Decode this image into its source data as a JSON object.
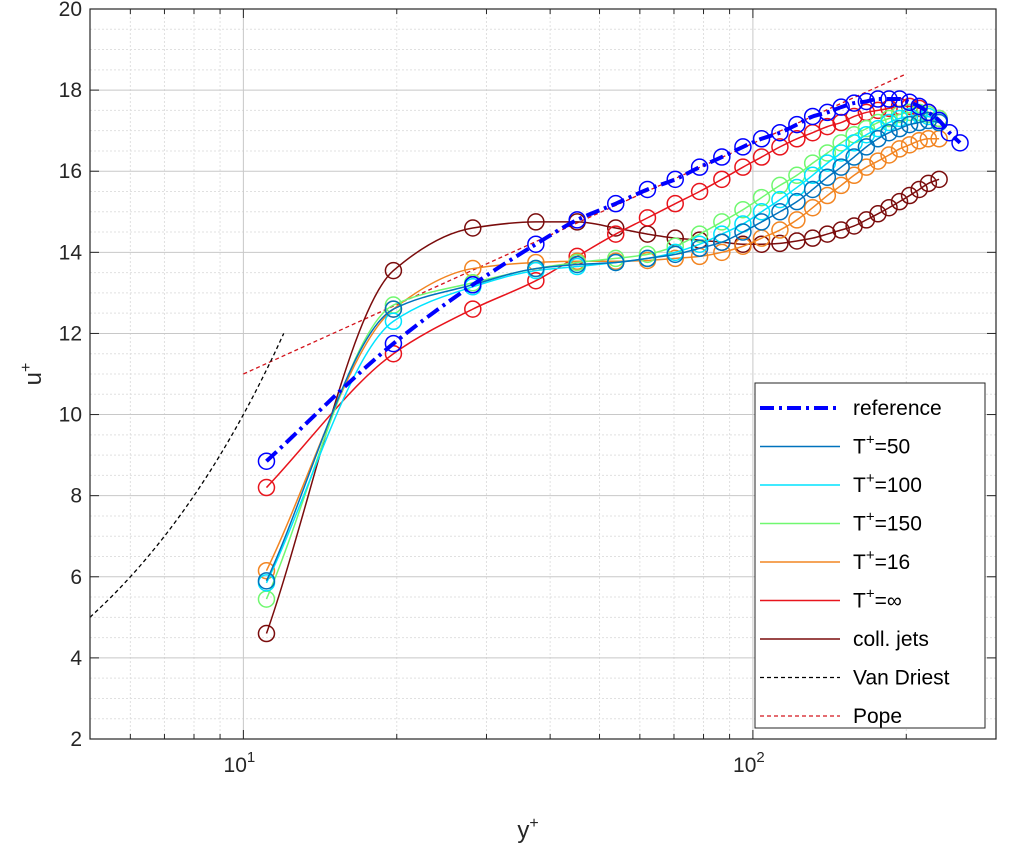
{
  "chart_data": {
    "type": "line",
    "xscale": "log",
    "xlim": [
      5,
      300
    ],
    "ylim": [
      2,
      20
    ],
    "xlabel_base": "y",
    "xlabel_sup": "+",
    "ylabel_base": "u",
    "ylabel_sup": "+",
    "grid": true,
    "minor_grid": true,
    "legend_position": "bottom-right",
    "yticks": [
      "2",
      "4",
      "6",
      "8",
      "10",
      "12",
      "14",
      "16",
      "18",
      "20"
    ],
    "xticks": [
      {
        "value": 10,
        "base": "10",
        "exp": "1"
      },
      {
        "value": 100,
        "base": "10",
        "exp": "2"
      }
    ],
    "series": [
      {
        "name": "reference",
        "name_base": "reference",
        "name_sup": "",
        "name_tail": "",
        "color": "#0000ff",
        "style": "dashdot",
        "width": 4,
        "markers": true,
        "x": [
          11.1,
          19.7,
          28.2,
          37.5,
          45.2,
          53.8,
          62.1,
          70.4,
          78.6,
          86.9,
          95.6,
          104,
          113,
          122,
          131,
          140,
          149,
          158,
          167,
          176,
          185,
          194,
          203,
          212,
          221,
          232,
          243,
          255
        ],
        "y": [
          8.85,
          11.75,
          13.2,
          14.2,
          14.8,
          15.2,
          15.55,
          15.8,
          16.1,
          16.35,
          16.6,
          16.8,
          16.95,
          17.15,
          17.35,
          17.45,
          17.58,
          17.68,
          17.72,
          17.78,
          17.78,
          17.78,
          17.7,
          17.6,
          17.45,
          17.25,
          16.95,
          16.7
        ]
      },
      {
        "name": "T+=50",
        "name_base": "T",
        "name_sup": "+",
        "name_tail": "=50",
        "color": "#0072bd",
        "style": "solid",
        "width": 1.5,
        "markers": true,
        "x": [
          11.1,
          19.7,
          28.2,
          37.5,
          45.2,
          53.8,
          62.1,
          70.4,
          78.6,
          86.9,
          95.6,
          104,
          113,
          122,
          131,
          140,
          149,
          158,
          167,
          176,
          185,
          194,
          203,
          212,
          221,
          232
        ],
        "y": [
          5.9,
          12.6,
          13.2,
          13.6,
          13.7,
          13.75,
          13.85,
          13.95,
          14.1,
          14.25,
          14.5,
          14.75,
          15.0,
          15.25,
          15.55,
          15.85,
          16.1,
          16.35,
          16.6,
          16.8,
          16.95,
          17.05,
          17.15,
          17.2,
          17.25,
          17.2
        ]
      },
      {
        "name": "T+=100",
        "name_base": "T",
        "name_sup": "+",
        "name_tail": "=100",
        "color": "#00e4ff",
        "style": "solid",
        "width": 1.5,
        "markers": true,
        "x": [
          11.1,
          19.7,
          28.2,
          37.5,
          45.2,
          53.8,
          62.1,
          70.4,
          78.6,
          86.9,
          95.6,
          104,
          113,
          122,
          131,
          140,
          149,
          158,
          167,
          176,
          185,
          194,
          203,
          212,
          221,
          232
        ],
        "y": [
          5.85,
          12.3,
          13.15,
          13.55,
          13.65,
          13.75,
          13.85,
          14.0,
          14.2,
          14.45,
          14.7,
          15.0,
          15.3,
          15.6,
          15.9,
          16.2,
          16.45,
          16.7,
          16.9,
          17.05,
          17.2,
          17.3,
          17.35,
          17.4,
          17.35,
          17.25
        ]
      },
      {
        "name": "T+=150",
        "name_base": "T",
        "name_sup": "+",
        "name_tail": "=150",
        "color": "#70f870",
        "style": "solid",
        "width": 1.5,
        "markers": true,
        "x": [
          11.1,
          19.7,
          28.2,
          37.5,
          45.2,
          53.8,
          62.1,
          70.4,
          78.6,
          86.9,
          95.6,
          104,
          113,
          122,
          131,
          140,
          149,
          158,
          167,
          176,
          185,
          194,
          203,
          212,
          221,
          232
        ],
        "y": [
          5.45,
          12.7,
          13.25,
          13.6,
          13.75,
          13.85,
          13.95,
          14.15,
          14.45,
          14.75,
          15.05,
          15.35,
          15.65,
          15.9,
          16.2,
          16.45,
          16.7,
          16.9,
          17.05,
          17.2,
          17.3,
          17.4,
          17.45,
          17.45,
          17.4,
          17.3
        ]
      },
      {
        "name": "T+=16",
        "name_base": "T",
        "name_sup": "+",
        "name_tail": "=16",
        "color": "#f28522",
        "style": "solid",
        "width": 1.5,
        "markers": true,
        "x": [
          11.1,
          19.7,
          28.2,
          37.5,
          45.2,
          53.8,
          62.1,
          70.4,
          78.6,
          86.9,
          95.6,
          104,
          113,
          122,
          131,
          140,
          149,
          158,
          167,
          176,
          185,
          194,
          203,
          212,
          221,
          232
        ],
        "y": [
          6.15,
          12.6,
          13.6,
          13.75,
          13.78,
          13.78,
          13.8,
          13.85,
          13.9,
          14.0,
          14.15,
          14.35,
          14.55,
          14.8,
          15.1,
          15.4,
          15.65,
          15.9,
          16.1,
          16.25,
          16.4,
          16.55,
          16.65,
          16.75,
          16.8,
          16.8
        ]
      },
      {
        "name": "T+=∞",
        "name_base": "T",
        "name_sup": "+",
        "name_tail": "=∞",
        "color": "#e8141c",
        "style": "solid",
        "width": 1.5,
        "markers": true,
        "x": [
          11.1,
          19.7,
          28.2,
          37.5,
          45.2,
          53.8,
          62.1,
          70.4,
          78.6,
          86.9,
          95.6,
          104,
          113,
          122,
          131,
          140,
          149,
          158,
          167,
          176,
          185,
          194,
          203,
          212,
          221,
          232
        ],
        "y": [
          8.2,
          11.5,
          12.6,
          13.3,
          13.9,
          14.45,
          14.85,
          15.2,
          15.5,
          15.8,
          16.1,
          16.35,
          16.6,
          16.8,
          16.95,
          17.1,
          17.2,
          17.35,
          17.45,
          17.5,
          17.55,
          17.6,
          17.6,
          17.55,
          17.45,
          17.3
        ]
      },
      {
        "name": "coll. jets",
        "name_base": "coll. jets",
        "name_sup": "",
        "name_tail": "",
        "color": "#7a0c0c",
        "style": "solid",
        "width": 1.5,
        "markers": true,
        "x": [
          11.1,
          19.7,
          28.2,
          37.5,
          45.2,
          53.8,
          62.1,
          70.4,
          78.6,
          86.9,
          95.6,
          104,
          113,
          122,
          131,
          140,
          149,
          158,
          167,
          176,
          185,
          194,
          203,
          212,
          221,
          232
        ],
        "y": [
          4.6,
          13.55,
          14.6,
          14.75,
          14.75,
          14.6,
          14.45,
          14.35,
          14.3,
          14.25,
          14.2,
          14.2,
          14.22,
          14.28,
          14.35,
          14.45,
          14.55,
          14.65,
          14.8,
          14.95,
          15.1,
          15.25,
          15.4,
          15.55,
          15.7,
          15.8
        ]
      },
      {
        "name": "Van Driest",
        "name_base": "Van Driest",
        "name_sup": "",
        "name_tail": "",
        "color": "#000000",
        "style": "dashed",
        "width": 1.3,
        "markers": false,
        "x": [
          5,
          5.5,
          6,
          6.5,
          7,
          7.5,
          8,
          8.5,
          9,
          9.5,
          10,
          10.5,
          11,
          11.5,
          12
        ],
        "y": [
          5.0,
          5.5,
          6.0,
          6.5,
          7.0,
          7.5,
          8.0,
          8.5,
          9.0,
          9.5,
          10.0,
          10.5,
          11.0,
          11.5,
          12.0
        ]
      },
      {
        "name": "Pope",
        "name_base": "Pope",
        "name_sup": "",
        "name_tail": "",
        "color": "#d4141c",
        "style": "dashed",
        "width": 1.3,
        "markers": false,
        "x": [
          10,
          200
        ],
        "y": [
          11.0,
          18.4
        ]
      }
    ]
  }
}
